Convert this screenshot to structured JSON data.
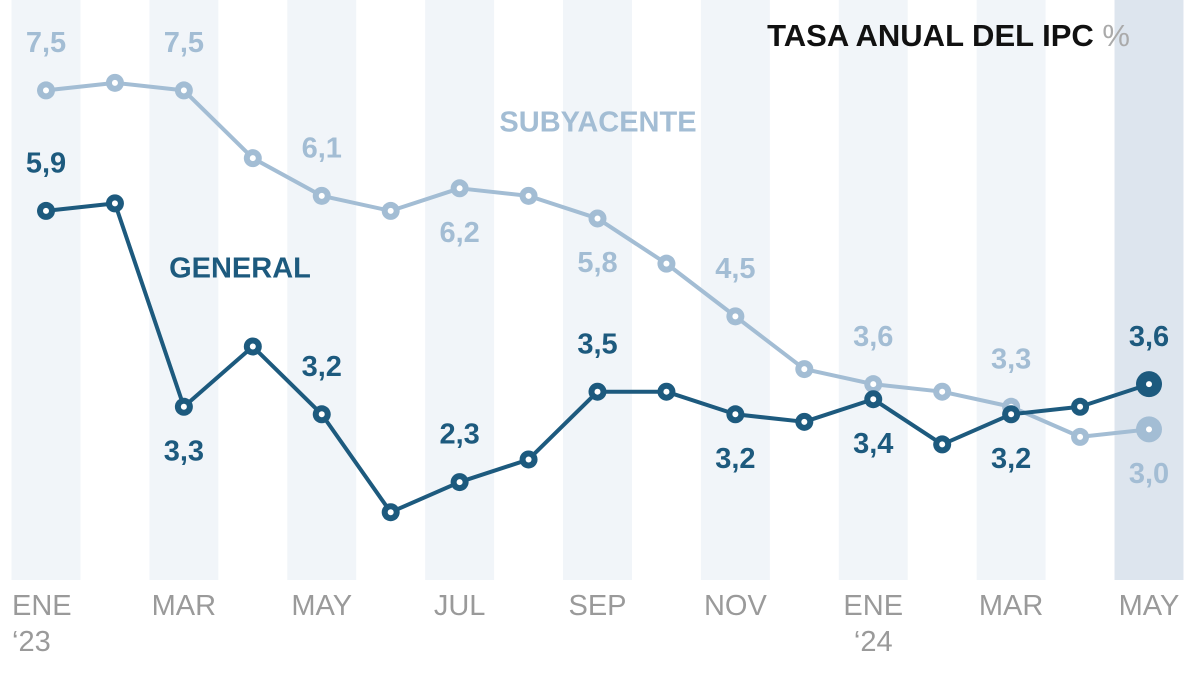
{
  "chart_data": {
    "type": "line",
    "title": "TASA ANUAL DEL IPC",
    "unit": "%",
    "categories": [
      "ENE\n‘23",
      null,
      "MAR",
      null,
      "MAY",
      null,
      "JUL",
      null,
      "SEP",
      null,
      "NOV",
      null,
      "ENE\n‘24",
      null,
      "MAR",
      null,
      "MAY"
    ],
    "ylim": [
      1,
      8.7
    ],
    "series": [
      {
        "name": "SUBYACENTE",
        "color": "#a3bdd4",
        "values": [
          7.5,
          7.6,
          7.5,
          6.6,
          6.1,
          5.9,
          6.2,
          6.1,
          5.8,
          5.2,
          4.5,
          3.8,
          3.6,
          3.5,
          3.3,
          2.9,
          3.0
        ],
        "value_labels": [
          "7,5",
          null,
          "7,5",
          null,
          "6,1",
          null,
          "6,2",
          null,
          "5,8",
          null,
          "4,5",
          null,
          "3,6",
          null,
          "3,3",
          null,
          "3,0"
        ]
      },
      {
        "name": "GENERAL",
        "color": "#1d5a7e",
        "values": [
          5.9,
          6.0,
          3.3,
          4.1,
          3.2,
          1.9,
          2.3,
          2.6,
          3.5,
          3.5,
          3.2,
          3.1,
          3.4,
          2.8,
          3.2,
          3.3,
          3.6
        ],
        "value_labels": [
          "5,9",
          null,
          "3,3",
          null,
          "3,2",
          null,
          "2,3",
          null,
          "3,5",
          null,
          "3,2",
          null,
          "3,4",
          null,
          "3,2",
          null,
          "3,6"
        ]
      }
    ]
  }
}
